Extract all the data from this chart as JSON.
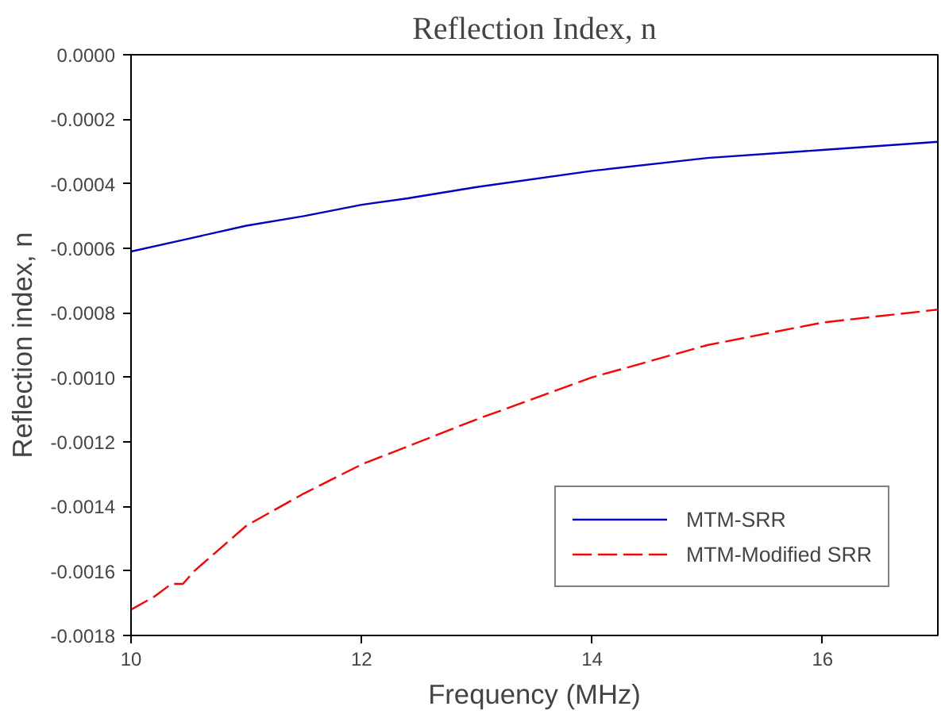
{
  "chart_data": {
    "type": "line",
    "title": "Reflection Index, n",
    "xlabel": "Frequency (MHz)",
    "ylabel": "Reflection index, n",
    "xlim": [
      10,
      17
    ],
    "xticks": [
      10,
      12,
      14,
      16
    ],
    "ylim": [
      -0.0018,
      0
    ],
    "yticks": [
      {
        "value": -0.0018,
        "label": "-0.0018"
      },
      {
        "value": -0.0016,
        "label": "-0.0016"
      },
      {
        "value": -0.0014,
        "label": "-0.0014"
      },
      {
        "value": -0.0012,
        "label": "-0.0012"
      },
      {
        "value": -0.001,
        "label": "-0.0010"
      },
      {
        "value": -0.0008,
        "label": "-0.0008"
      },
      {
        "value": -0.0006,
        "label": "-0.0006"
      },
      {
        "value": -0.0004,
        "label": "-0.0004"
      },
      {
        "value": -0.0002,
        "label": "-0.0002"
      },
      {
        "value": 0,
        "label": "0.0000"
      }
    ],
    "grid": false,
    "legend": "bottom right",
    "series": [
      {
        "name": "MTM-SRR",
        "color": "#0000c0",
        "line_style": "solid",
        "x": [
          10,
          10.5,
          11,
          11.5,
          12,
          12.4,
          13,
          14,
          15,
          16,
          17
        ],
        "values": [
          -0.00061,
          -0.00057,
          -0.00053,
          -0.0005,
          -0.000465,
          -0.000445,
          -0.00041,
          -0.00036,
          -0.00032,
          -0.000295,
          -0.00027
        ]
      },
      {
        "name": "MTM-Modified SRR",
        "color": "#ff0000",
        "line_style": "dashed",
        "x": [
          10,
          10.2,
          10.35,
          10.45,
          10.55,
          11,
          11.5,
          12,
          12.5,
          13,
          14,
          15,
          16,
          17
        ],
        "values": [
          -0.00172,
          -0.00168,
          -0.00164,
          -0.00164,
          -0.0016,
          -0.00146,
          -0.00136,
          -0.00127,
          -0.0012,
          -0.00113,
          -0.001,
          -0.0009,
          -0.00083,
          -0.00079
        ]
      }
    ]
  }
}
